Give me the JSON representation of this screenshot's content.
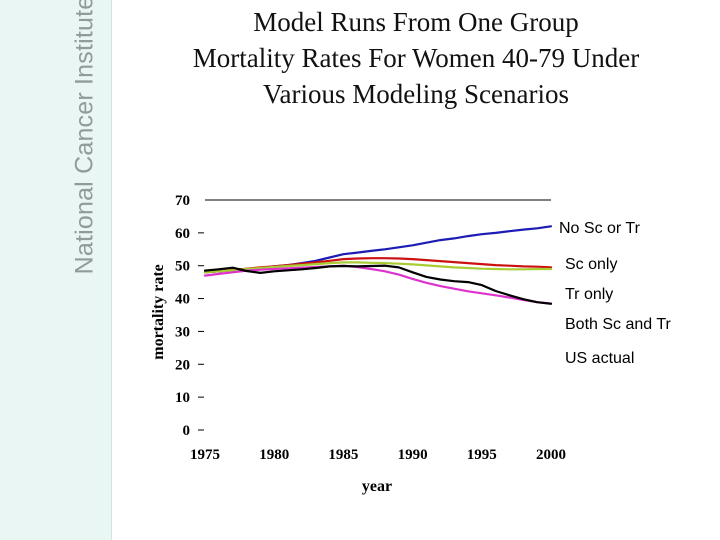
{
  "sidebar": {
    "brand": "National Cancer Institute"
  },
  "title_lines": [
    "Model Runs From One Group",
    "Mortality Rates For Women 40-79 Under",
    "Various Modeling Scenarios"
  ],
  "chart_data": {
    "type": "line",
    "title": "Model Runs From One Group Mortality Rates For Women 40-79 Under Various Modeling Scenarios",
    "xlabel": "year",
    "ylabel": "mortality rate",
    "xlim": [
      1975,
      2000
    ],
    "ylim": [
      0,
      70
    ],
    "xticks": [
      1975,
      1980,
      1985,
      1990,
      1995,
      2000
    ],
    "yticks": [
      0,
      10,
      20,
      30,
      40,
      50,
      60,
      70
    ],
    "grid": false,
    "legend_placement": "right",
    "series": [
      {
        "name": "No Sc or Tr",
        "color": "#1c1cb4",
        "x": [
          1975,
          1976,
          1977,
          1978,
          1979,
          1980,
          1981,
          1982,
          1983,
          1984,
          1985,
          1986,
          1987,
          1988,
          1989,
          1990,
          1991,
          1992,
          1993,
          1994,
          1995,
          1996,
          1997,
          1998,
          1999,
          2000
        ],
        "y": [
          48,
          48.3,
          48.6,
          48.9,
          49.3,
          49.8,
          50.2,
          50.8,
          51.5,
          52.5,
          53.5,
          54,
          54.5,
          55,
          55.6,
          56.2,
          57,
          57.8,
          58.3,
          59,
          59.6,
          60,
          60.5,
          61,
          61.4,
          62
        ]
      },
      {
        "name": "Sc only",
        "color": "#cc1111",
        "x": [
          1975,
          1976,
          1977,
          1978,
          1979,
          1980,
          1981,
          1982,
          1983,
          1984,
          1985,
          1986,
          1987,
          1988,
          1989,
          1990,
          1991,
          1992,
          1993,
          1994,
          1995,
          1996,
          1997,
          1998,
          1999,
          2000
        ],
        "y": [
          48,
          48.3,
          48.7,
          49.1,
          49.5,
          49.8,
          50.2,
          50.6,
          51,
          51.5,
          52,
          52.2,
          52.3,
          52.3,
          52.2,
          52,
          51.7,
          51.4,
          51.1,
          50.8,
          50.5,
          50.2,
          50,
          49.8,
          49.7,
          49.5
        ]
      },
      {
        "name": "Tr only",
        "color": "#a8cc33",
        "x": [
          1975,
          1976,
          1977,
          1978,
          1979,
          1980,
          1981,
          1982,
          1983,
          1984,
          1985,
          1986,
          1987,
          1988,
          1989,
          1990,
          1991,
          1992,
          1993,
          1994,
          1995,
          1996,
          1997,
          1998,
          1999,
          2000
        ],
        "y": [
          48,
          48.3,
          48.6,
          49,
          49.3,
          49.6,
          49.9,
          50.2,
          50.5,
          50.8,
          51,
          51,
          50.9,
          50.8,
          50.6,
          50.4,
          50.1,
          49.8,
          49.5,
          49.3,
          49.1,
          49,
          48.9,
          48.9,
          49,
          49
        ]
      },
      {
        "name": "Both Sc and Tr",
        "color": "#dd33cc",
        "x": [
          1975,
          1976,
          1977,
          1978,
          1979,
          1980,
          1981,
          1982,
          1983,
          1984,
          1985,
          1986,
          1987,
          1988,
          1989,
          1990,
          1991,
          1992,
          1993,
          1994,
          1995,
          1996,
          1997,
          1998,
          1999,
          2000
        ],
        "y": [
          47,
          47.5,
          48,
          48.5,
          48.8,
          49,
          49.2,
          49.4,
          49.6,
          49.8,
          50,
          49.6,
          49,
          48.3,
          47.3,
          46,
          44.8,
          43.8,
          43,
          42.2,
          41.6,
          41,
          40.3,
          39.6,
          38.9,
          38.5
        ]
      },
      {
        "name": "US actual",
        "color": "#000000",
        "x": [
          1975,
          1976,
          1977,
          1978,
          1979,
          1980,
          1981,
          1982,
          1983,
          1984,
          1985,
          1986,
          1987,
          1988,
          1989,
          1990,
          1991,
          1992,
          1993,
          1994,
          1995,
          1996,
          1997,
          1998,
          1999,
          2000
        ],
        "y": [
          48.5,
          48.9,
          49.4,
          48.4,
          47.8,
          48.3,
          48.6,
          48.9,
          49.3,
          49.8,
          49.9,
          49.8,
          49.9,
          50,
          49.5,
          48,
          46.6,
          45.8,
          45.3,
          45,
          44.1,
          42.3,
          41,
          39.8,
          38.9,
          38.4
        ]
      }
    ]
  }
}
